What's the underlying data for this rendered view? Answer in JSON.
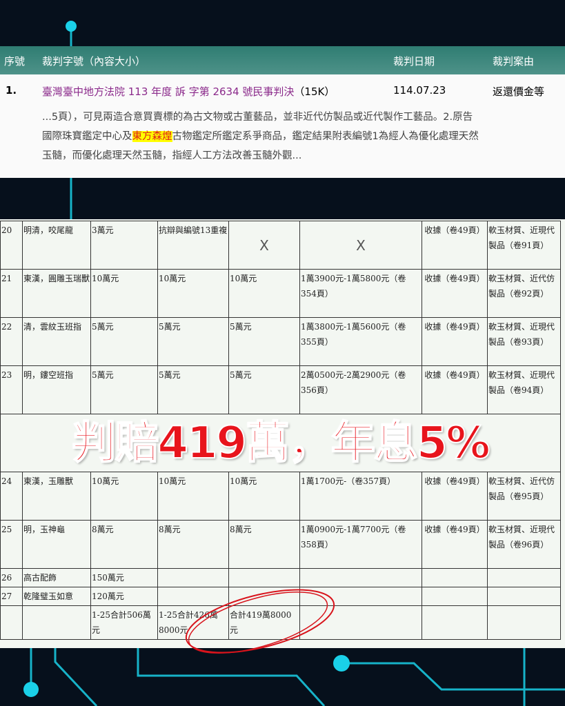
{
  "header": {
    "seq": "序號",
    "case_no": "裁判字號（內容大小）",
    "date": "裁判日期",
    "cause": "裁判案由"
  },
  "result": {
    "index": "1.",
    "title": "臺灣臺中地方法院 113 年度 訴 字第 2634 號民事判決",
    "size": "（15K）",
    "date": "114.07.23",
    "cause": "返還價金等",
    "snippet_line1": "...5頁），可見兩造合意買賣標的為古文物或古董藝品，並非近代仿製品或近代製作工藝品。2.原告",
    "snippet_line2_pre": "國際珠寶鑑定中心及",
    "snippet_highlight": "東方森煌",
    "snippet_line2_post": "古物鑑定所鑑定系爭商品，鑑定結果附表編號1為經人為優化處理天然",
    "snippet_line3": "玉髓，而優化處理天然玉髓，指經人工方法改善玉髓外觀..."
  },
  "table": {
    "rows": [
      [
        "20",
        "明清，咬尾龍",
        "3萬元",
        "抗辯與編號13重複",
        "X",
        "X",
        "收據（卷49頁）",
        "軟玉材質、近現代製品（卷91頁）"
      ],
      [
        "21",
        "東漢，圓雕玉瑞獸",
        "10萬元",
        "10萬元",
        "10萬元",
        "1萬3900元-1萬5800元（卷354頁）",
        "收據（卷49頁）",
        "軟玉材質、近代仿製品（卷92頁）"
      ],
      [
        "22",
        "清，雲紋玉班指",
        "5萬元",
        "5萬元",
        "5萬元",
        "1萬3800元-1萬5600元（卷355頁）",
        "收據（卷49頁）",
        "軟玉材質、近現代製品（卷93頁）"
      ],
      [
        "23",
        "明，鏤空班指",
        "5萬元",
        "5萬元",
        "5萬元",
        "2萬0500元-2萬2900元（卷356頁）",
        "收據（卷49頁）",
        "軟玉材質、近現代製品（卷94頁）"
      ],
      [
        "24",
        "東漢，玉雕獸",
        "10萬元",
        "10萬元",
        "10萬元",
        "1萬1700元-（卷357頁）",
        "收據（卷49頁）",
        "軟玉材質、近代仿製品（卷95頁）"
      ],
      [
        "25",
        "明，玉神龜",
        "8萬元",
        "8萬元",
        "8萬元",
        "1萬0900元-1萬7700元（卷358頁）",
        "收據（卷49頁）",
        "軟玉材質、近現代製品（卷96頁）"
      ],
      [
        "26",
        "高古配飾",
        "150萬元",
        "",
        "",
        "",
        "",
        ""
      ],
      [
        "27",
        "乾隆璧玉如意",
        "120萬元",
        "",
        "",
        "",
        "",
        ""
      ],
      [
        "",
        "",
        "1-25合計506萬元",
        "1-25合計426萬8000元",
        "合計419萬8000元",
        "",
        "",
        ""
      ]
    ]
  },
  "overlay_text": "判賠419萬，年息5%",
  "colors": {
    "accent": "#e8141c",
    "header": "#3a857a",
    "circuit": "#1ad0e8"
  }
}
